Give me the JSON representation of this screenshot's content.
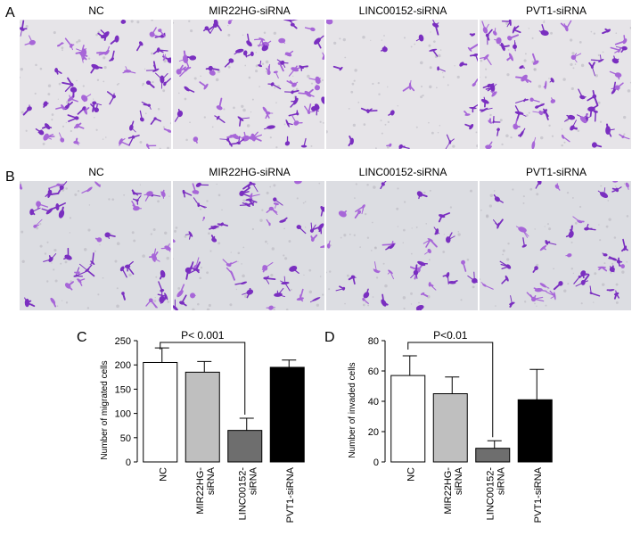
{
  "panels": {
    "A": {
      "letter": "A"
    },
    "B": {
      "letter": "B"
    },
    "C": {
      "letter": "C"
    },
    "D": {
      "letter": "D"
    }
  },
  "micrograph_titles": [
    "NC",
    "MIR22HG-siRNA",
    "LINC00152-siRNA",
    "PVT1-siRNA"
  ],
  "colors": {
    "stain": "#7a2fc0",
    "stain_light": "#a766d8",
    "bg_A": "#e6e4e8",
    "bg_B": "#dcdde2",
    "bar_fills": [
      "#ffffff",
      "#bfbfbf",
      "#6e6e6e",
      "#000000"
    ]
  },
  "chart_data": [
    {
      "type": "bar",
      "panel": "C",
      "categories": [
        "NC",
        "MIR22HG-siRNA",
        "LINC00152-siRNA",
        "PVT1-siRNA"
      ],
      "category_labels": [
        [
          "NC"
        ],
        [
          "MIR22HG-",
          "siRNA"
        ],
        [
          "LINC00152-",
          "siRNA"
        ],
        [
          "PVT1-siRNA"
        ]
      ],
      "values": [
        205,
        185,
        65,
        195
      ],
      "errors": [
        30,
        22,
        25,
        15
      ],
      "ylabel": "Number of migrated cells",
      "ylim": [
        0,
        250
      ],
      "yticks": [
        0,
        50,
        100,
        150,
        200,
        250
      ],
      "annotation": {
        "text": "P< 0.001",
        "from": 0,
        "to": 2
      }
    },
    {
      "type": "bar",
      "panel": "D",
      "categories": [
        "NC",
        "MIR22HG-siRNA",
        "LINC00152-siRNA",
        "PVT1-siRNA"
      ],
      "category_labels": [
        [
          "NC"
        ],
        [
          "MIR22HG-",
          "siRNA"
        ],
        [
          "LINC00152-",
          "siRNA"
        ],
        [
          "PVT1-siRNA"
        ]
      ],
      "values": [
        57,
        45,
        9,
        41
      ],
      "errors": [
        13,
        11,
        5,
        20
      ],
      "ylabel": "Number of invaded cells",
      "ylim": [
        0,
        80
      ],
      "yticks": [
        0,
        20,
        40,
        60,
        80
      ],
      "annotation": {
        "text": "P<0.01",
        "from": 0,
        "to": 2
      }
    }
  ]
}
